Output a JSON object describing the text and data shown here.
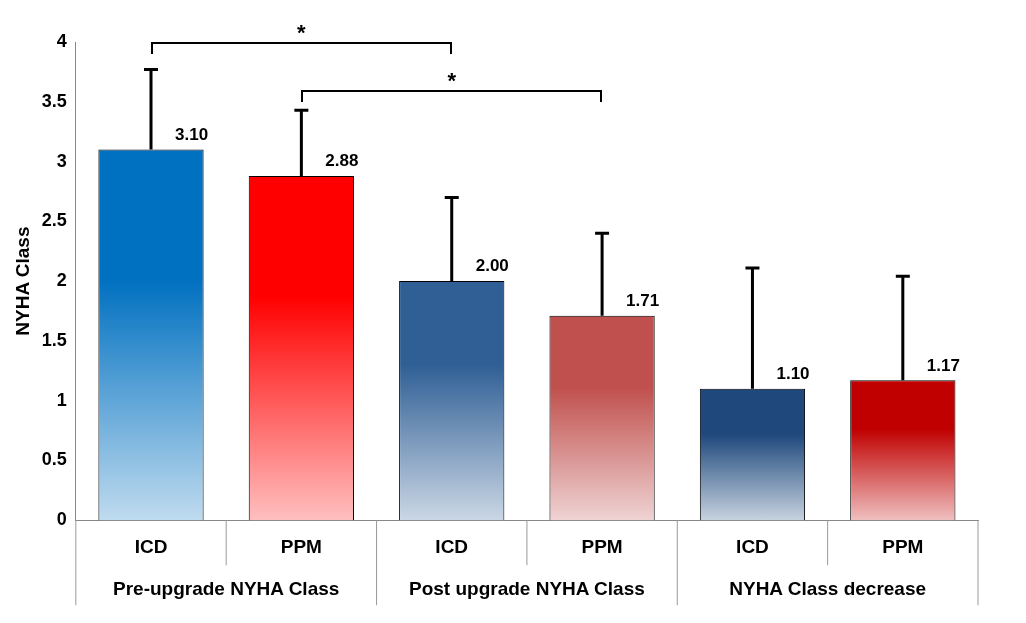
{
  "chart_data": {
    "type": "bar",
    "ylabel": "NYHA Class",
    "categories": [
      "ICD",
      "PPM",
      "ICD",
      "PPM",
      "ICD",
      "PPM"
    ],
    "values": [
      3.1,
      2.88,
      2.0,
      1.71,
      1.1,
      1.17
    ],
    "value_labels": [
      "3.10",
      "2.88",
      "2.00",
      "1.71",
      "1.10",
      "1.17"
    ],
    "colors": [
      "#0070c0",
      "#ff0000",
      "#2f5f95",
      "#c0504d",
      "#1f497d",
      "#c00000"
    ],
    "errors": [
      [
        3.1,
        3.77
      ],
      [
        2.88,
        3.43
      ],
      [
        2.0,
        2.7
      ],
      [
        1.71,
        2.4
      ],
      [
        1.1,
        2.11
      ],
      [
        1.17,
        2.04
      ]
    ],
    "ylim": [
      0,
      4
    ],
    "yticks": [
      0,
      0.5,
      1,
      1.5,
      2,
      2.5,
      3,
      3.5,
      4
    ],
    "grid": false,
    "legend": false,
    "annotations": [
      "*",
      "*",
      "Pre-upgrade NYHA Class",
      "Post upgrade NYHA Class",
      "NYHA Class decrease"
    ]
  }
}
